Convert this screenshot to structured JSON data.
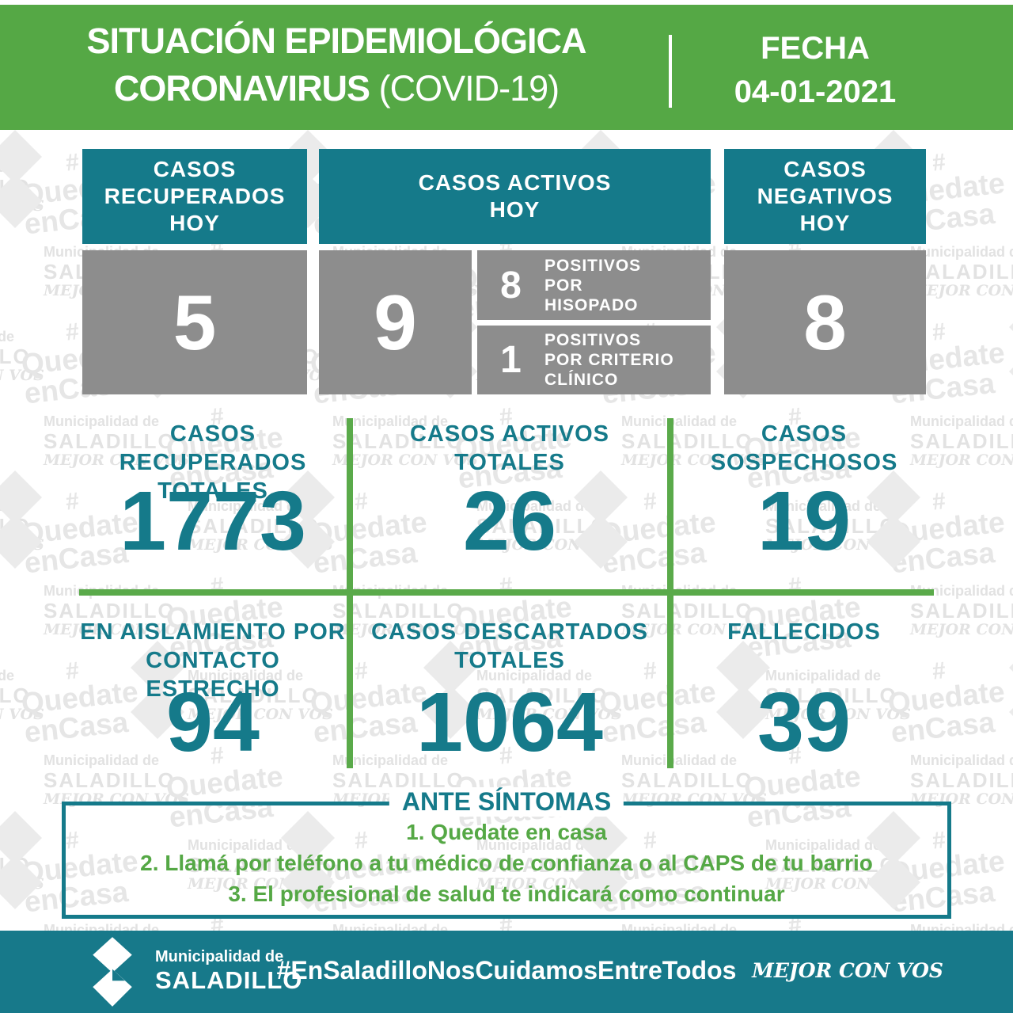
{
  "header": {
    "title_line1": "SITUACIÓN EPIDEMIOLÓGICA",
    "title_line2_bold": "CORONAVIRUS",
    "title_line2_light": " (COVID-19)",
    "fecha_label": "FECHA",
    "fecha_value": "04-01-2021"
  },
  "today_boxes": {
    "recuperados": {
      "label": "CASOS\nRECUPERADOS\nHOY",
      "value": "5"
    },
    "activos": {
      "label": "CASOS ACTIVOS\nHOY",
      "value": "9",
      "breakdown": [
        {
          "value": "8",
          "label": "POSITIVOS\nPOR\nHISOPADO"
        },
        {
          "value": "1",
          "label": "POSITIVOS\nPOR CRITERIO\nCLÍNICO"
        }
      ]
    },
    "negativos": {
      "label": "CASOS\nNEGATIVOS\nHOY",
      "value": "8"
    }
  },
  "totals": [
    {
      "label": "CASOS RECUPERADOS\nTOTALES",
      "value": "1773"
    },
    {
      "label": "CASOS ACTIVOS\nTOTALES",
      "value": "26"
    },
    {
      "label": "CASOS\nSOSPECHOSOS",
      "value": "19"
    },
    {
      "label": "EN AISLAMIENTO POR\nCONTACTO ESTRECHO",
      "value": "94"
    },
    {
      "label": "CASOS DESCARTADOS\nTOTALES",
      "value": "1064"
    },
    {
      "label": "FALLECIDOS",
      "value": "39"
    }
  ],
  "symptoms": {
    "title": "ANTE SÍNTOMAS",
    "items": [
      "1. Quedate en casa",
      "2. Llamá por teléfono a tu médico de confianza o al CAPS de tu barrio",
      "3. El profesional de salud te indicará como continuar"
    ]
  },
  "footer": {
    "logo_line1": "Municipalidad de",
    "logo_line2": "SALADILLO",
    "hashtag": "#EnSaladilloNosCuidamosEntreTodos",
    "slogan": "MEJOR CON VOS"
  },
  "watermark": {
    "muni_line1": "Municipalidad de",
    "muni_line2": "SALADILLO",
    "muni_line3": "MEJOR CON VOS",
    "hash": "#",
    "quedate_line1": "Quedate",
    "quedate_line2": "enCasa"
  },
  "colors": {
    "header_green": "#55a845",
    "teal": "#157a8a",
    "footer_teal": "#17798a",
    "box_gray": "#8d8d8d",
    "divider_green": "#5aaa4a",
    "watermark_gray": "#e4e4e4",
    "text_green": "#55a845",
    "white": "#ffffff"
  }
}
